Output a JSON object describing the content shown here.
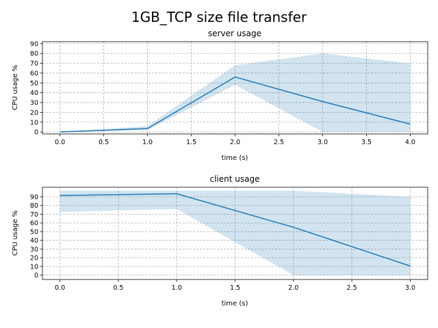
{
  "figure": {
    "title": "1GB_TCP size file transfer"
  },
  "chart_data": [
    {
      "type": "line",
      "title": "server usage",
      "xlabel": "time (s)",
      "ylabel": "CPU usage %",
      "x": [
        0,
        1,
        2,
        3,
        4
      ],
      "series": [
        {
          "mean": [
            0,
            3.5,
            56,
            31,
            8
          ],
          "lower": [
            0,
            2,
            48,
            0,
            0
          ],
          "upper": [
            0,
            6,
            68,
            80,
            70
          ]
        }
      ],
      "xlim": [
        -0.2,
        4.2
      ],
      "ylim": [
        -2,
        92
      ],
      "xticks": [
        0,
        0.5,
        1,
        1.5,
        2,
        2.5,
        3,
        3.5,
        4
      ],
      "xtick_labels": [
        "0.0",
        "0.5",
        "1.0",
        "1.5",
        "2.0",
        "2.5",
        "3.0",
        "3.5",
        "4.0"
      ],
      "yticks": [
        0,
        10,
        20,
        30,
        40,
        50,
        60,
        70,
        80,
        90
      ],
      "ytick_labels": [
        "0",
        "10",
        "20",
        "30",
        "40",
        "50",
        "60",
        "70",
        "80",
        "90"
      ],
      "grid": true
    },
    {
      "type": "line",
      "title": "client usage",
      "xlabel": "time (s)",
      "ylabel": "CPU usage %",
      "x": [
        0,
        1,
        2,
        3
      ],
      "series": [
        {
          "mean": [
            91.5,
            93.5,
            55,
            10.5
          ],
          "lower": [
            72.5,
            76,
            0,
            0
          ],
          "upper": [
            97,
            97,
            97,
            90
          ]
        }
      ],
      "xlim": [
        -0.15,
        3.15
      ],
      "ylim": [
        -5,
        101
      ],
      "xticks": [
        0,
        0.5,
        1,
        1.5,
        2,
        2.5,
        3
      ],
      "xtick_labels": [
        "0.0",
        "0.5",
        "1.0",
        "1.5",
        "2.0",
        "2.5",
        "3.0"
      ],
      "yticks": [
        0,
        10,
        20,
        30,
        40,
        50,
        60,
        70,
        80,
        90
      ],
      "ytick_labels": [
        "0",
        "10",
        "20",
        "30",
        "40",
        "50",
        "60",
        "70",
        "80",
        "90"
      ],
      "grid": true
    }
  ]
}
